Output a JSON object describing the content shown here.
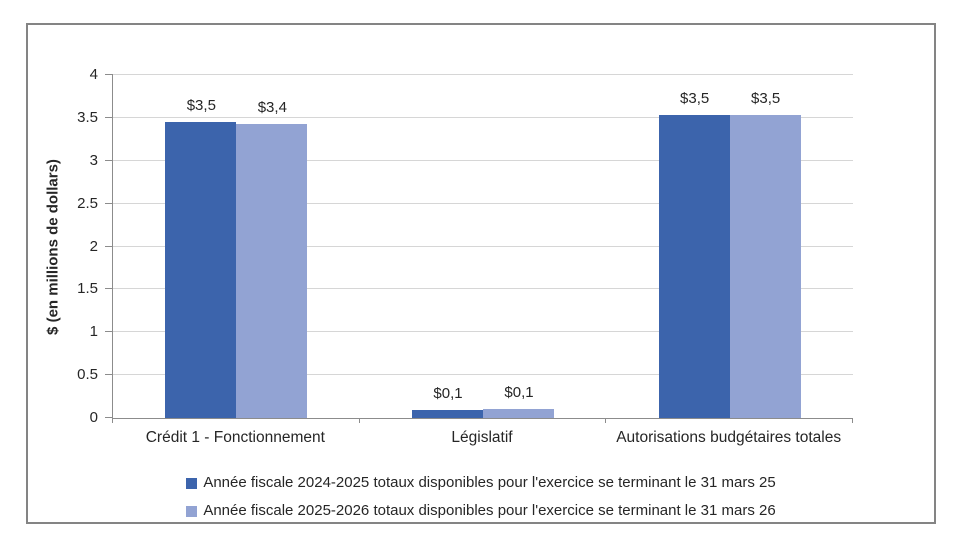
{
  "chart_data": {
    "type": "bar",
    "title": "",
    "xlabel": "",
    "ylabel": "$ (en millions de dollars)",
    "ylim": [
      0,
      4
    ],
    "ytick_values": [
      0,
      0.5,
      1,
      1.5,
      2,
      2.5,
      3,
      3.5,
      4
    ],
    "ytick_labels": [
      "0",
      "0.5",
      "1",
      "1.5",
      "2",
      "2.5",
      "3",
      "3.5",
      "4"
    ],
    "grid": true,
    "legend_position": "bottom",
    "categories": [
      "Crédit 1 - Fonctionnement",
      "Législatif",
      "Autorisations budgétaires totales"
    ],
    "series": [
      {
        "name": "Année fiscale 2024-2025 totaux disponibles pour l'exercice se terminant le 31 mars 25",
        "color": "#3C64AC",
        "values": [
          3.45,
          0.09,
          3.53
        ],
        "data_labels": [
          "$3,5",
          "$0,1",
          "$3,5"
        ]
      },
      {
        "name": "Année fiscale 2025-2026 totaux disponibles pour l'exercice se terminant le 31 mars 26",
        "color": "#92A3D3",
        "values": [
          3.43,
          0.1,
          3.53
        ],
        "data_labels": [
          "$3,4",
          "$0,1",
          "$3,5"
        ]
      }
    ],
    "colors": {
      "gridline": "#D6D6D6",
      "axis": "#8C8C8C",
      "frame_border": "#848484",
      "text": "#262626",
      "background": "#FFFFFF"
    }
  }
}
